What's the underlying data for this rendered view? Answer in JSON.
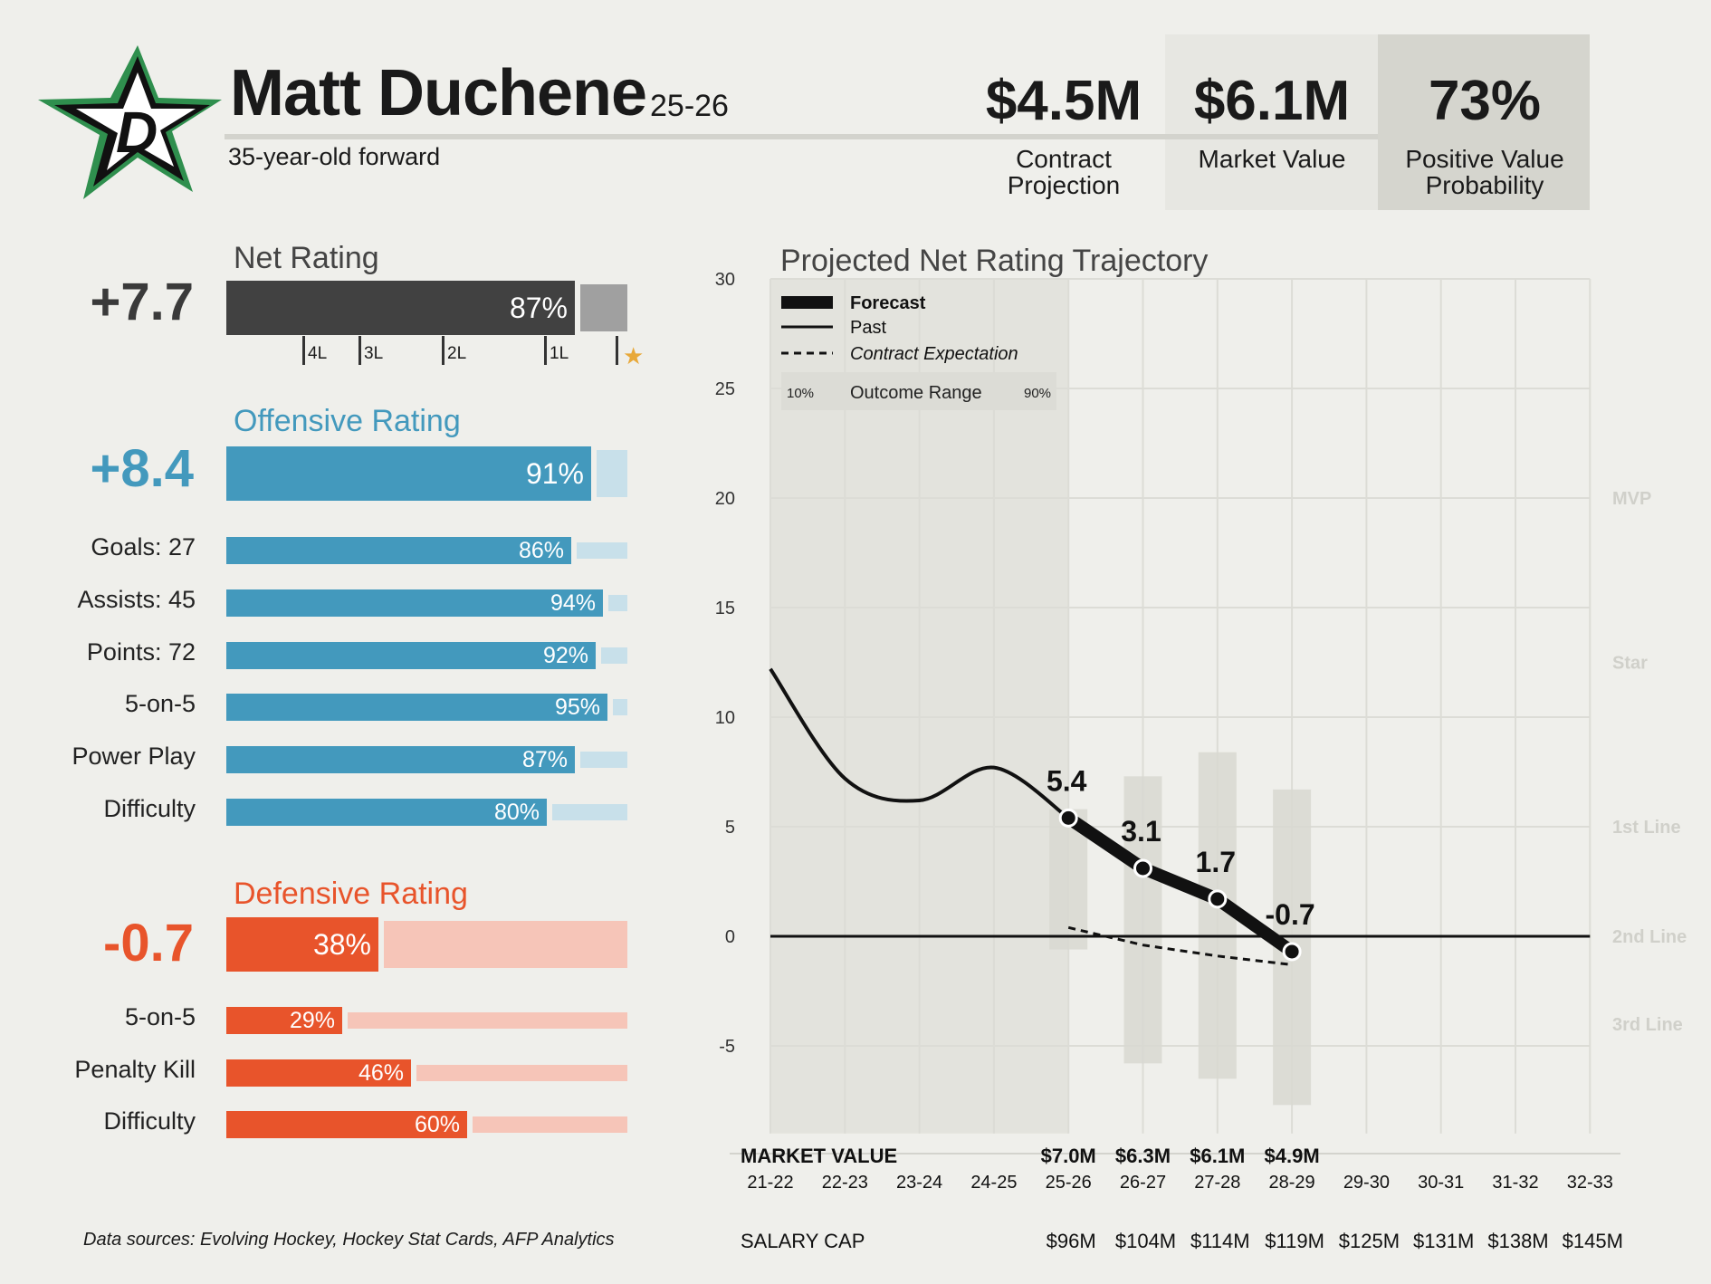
{
  "header": {
    "player_name": "Matt Duchene",
    "season": "25-26",
    "subtitle": "35-year-old forward",
    "metrics": [
      {
        "value": "$4.5M",
        "label_line1": "Contract",
        "label_line2": "Projection"
      },
      {
        "value": "$6.1M",
        "label_line1": "Market Value",
        "label_line2": ""
      },
      {
        "value": "73%",
        "label_line1": "Positive Value",
        "label_line2": "Probability"
      }
    ]
  },
  "logo": {
    "name": "dallas-stars-logo",
    "color_green": "#2f8f4e",
    "color_black": "#111111",
    "letter": "D"
  },
  "net_rating": {
    "title": "Net Rating",
    "value": "+7.7",
    "percentile": 0.87,
    "label": "87%",
    "color": "#414141",
    "range_color": "#a0a0a0",
    "tick_labels": [
      "4L",
      "3L",
      "2L",
      "1L"
    ],
    "star": "★",
    "star_color": "#e8a93a"
  },
  "offense": {
    "title": "Offensive Rating",
    "value": "+8.4",
    "percentile": 0.91,
    "label": "91%",
    "color": "#4399bd",
    "light_color": "#c8e0ea",
    "rows": [
      {
        "label": "Goals: 27",
        "pct": 0.86,
        "text": "86%"
      },
      {
        "label": "Assists: 45",
        "pct": 0.94,
        "text": "94%"
      },
      {
        "label": "Points: 72",
        "pct": 0.92,
        "text": "92%"
      },
      {
        "label": "5-on-5",
        "pct": 0.95,
        "text": "95%"
      },
      {
        "label": "Power Play",
        "pct": 0.87,
        "text": "87%"
      },
      {
        "label": "Difficulty",
        "pct": 0.8,
        "text": "80%"
      }
    ]
  },
  "defense": {
    "title": "Defensive Rating",
    "value": "-0.7",
    "percentile": 0.38,
    "label": "38%",
    "color": "#e8542b",
    "light_color": "#f6c5b8",
    "rows": [
      {
        "label": "5-on-5",
        "pct": 0.29,
        "text": "29%"
      },
      {
        "label": "Penalty Kill",
        "pct": 0.46,
        "text": "46%"
      },
      {
        "label": "Difficulty",
        "pct": 0.6,
        "text": "60%"
      }
    ]
  },
  "chart_data": {
    "type": "line",
    "title": "Projected Net Rating Trajectory",
    "x": [
      "21-22",
      "22-23",
      "23-24",
      "24-25",
      "25-26",
      "26-27",
      "27-28",
      "28-29",
      "29-30",
      "30-31",
      "31-32",
      "32-33"
    ],
    "ylim": [
      -9,
      30
    ],
    "yticks": [
      30,
      25,
      20,
      15,
      10,
      5,
      0,
      -5
    ],
    "grid": true,
    "legend": {
      "placement": "top-left",
      "forecast": "Forecast",
      "past": "Past",
      "contract": "Contract Expectation",
      "range_lo": "10%",
      "range_label": "Outcome Range",
      "range_hi": "90%"
    },
    "past": {
      "x": [
        "21-22",
        "22-23",
        "23-24",
        "24-25",
        "25-26"
      ],
      "values": [
        12.2,
        7.2,
        6.2,
        7.7,
        5.4
      ]
    },
    "forecast": {
      "x": [
        "25-26",
        "26-27",
        "27-28",
        "28-29"
      ],
      "values": [
        5.4,
        3.1,
        1.7,
        -0.7
      ],
      "labels": [
        "5.4",
        "3.1",
        "1.7",
        "-0.7"
      ]
    },
    "contract_expectation": {
      "x": [
        "25-26",
        "26-27",
        "27-28",
        "28-29"
      ],
      "values": [
        0.4,
        -0.4,
        -0.9,
        -1.3
      ]
    },
    "outcome_range": [
      {
        "x": "25-26",
        "lo": -0.6,
        "hi": 5.8
      },
      {
        "x": "26-27",
        "lo": -5.8,
        "hi": 7.3
      },
      {
        "x": "27-28",
        "lo": -6.5,
        "hi": 8.4
      },
      {
        "x": "28-29",
        "lo": -7.7,
        "hi": 6.7
      }
    ],
    "tiers": [
      {
        "label": "MVP",
        "y": 20
      },
      {
        "label": "Star",
        "y": 12.5
      },
      {
        "label": "1st Line",
        "y": 5
      },
      {
        "label": "2nd Line",
        "y": 0
      },
      {
        "label": "3rd Line",
        "y": -4
      }
    ],
    "shaded_history_from": "21-22",
    "shaded_history_to": "25-26",
    "market_value_title": "MARKET VALUE",
    "market_value": {
      "25-26": "$7.0M",
      "26-27": "$6.3M",
      "27-28": "$6.1M",
      "28-29": "$4.9M"
    },
    "salary_cap_title": "SALARY CAP",
    "salary_cap": {
      "25-26": "$96M",
      "26-27": "$104M",
      "27-28": "$114M",
      "28-29": "$119M",
      "29-30": "$125M",
      "30-31": "$131M",
      "31-32": "$138M",
      "32-33": "$145M"
    }
  },
  "footer": {
    "sources": "Data sources: Evolving Hockey, Hockey Stat Cards, AFP Analytics"
  }
}
